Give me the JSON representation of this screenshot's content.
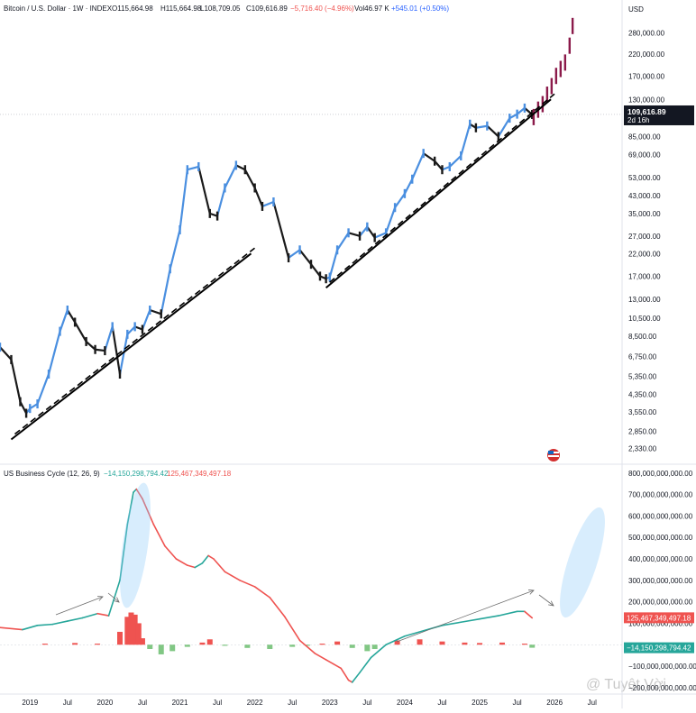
{
  "header": {
    "symbol": "Bitcoin / U.S. Dollar · 1W · INDEX",
    "open": "O115,664.98",
    "high": "H115,664.98",
    "low": "L108,709.05",
    "close": "C109,616.89",
    "change": "−5,716.40 (−4.96%)",
    "volume": "Vol46.97 K",
    "bid_change": "+545.01 (+0.50%)"
  },
  "price_pane": {
    "currency": "USD",
    "last_price": "109,616.89",
    "countdown": "2d 16h",
    "colors": {
      "up": "#4a8fe0",
      "down": "#1a1a1a",
      "projection": "#8b1a4a",
      "trend": "#000000"
    }
  },
  "indicator": {
    "title": "US Business Cycle (12, 26, 9)",
    "value1": "−14,150,298,794.42",
    "value2": "125,467,349,497.18",
    "colors": {
      "rising": "#26a69a",
      "falling": "#ef5350",
      "hist_pos": "#ef5350",
      "hist_neg": "#81c784"
    }
  },
  "watermark": "@ Tuyệt Vời",
  "chart_data": [
    {
      "type": "line",
      "title": "Bitcoin / U.S. Dollar · 1W · INDEX",
      "scale": "log",
      "y_ticks": [
        "280,000.00",
        "220,000.00",
        "170,000.00",
        "130,000.00",
        "85,000.00",
        "69,000.00",
        "53,000.00",
        "43,000.00",
        "35,000.00",
        "27,000.00",
        "22,000.00",
        "17,000.00",
        "13,000.00",
        "10,500.00",
        "8,500.00",
        "6,750.00",
        "5,350.00",
        "4,350.00",
        "3,550.00",
        "2,850.00",
        "2,330.00"
      ],
      "y_tick_values": [
        280000,
        220000,
        170000,
        130000,
        85000,
        69000,
        53000,
        43000,
        35000,
        27000,
        22000,
        17000,
        13000,
        10500,
        8500,
        6750,
        5350,
        4350,
        3550,
        2850,
        2330
      ],
      "ylim": [
        2050,
        340000
      ],
      "x_ticks": [
        "2019",
        "Jul",
        "2020",
        "Jul",
        "2021",
        "Jul",
        "2022",
        "Jul",
        "2023",
        "Jul",
        "2024",
        "Jul",
        "2025",
        "Jul",
        "2026",
        "Jul"
      ],
      "x_tick_values": [
        2019.0,
        2019.5,
        2020.0,
        2020.5,
        2021.0,
        2021.5,
        2022.0,
        2022.5,
        2023.0,
        2023.5,
        2024.0,
        2024.5,
        2025.0,
        2025.5,
        2026.0,
        2026.5
      ],
      "xlim": [
        2018.6,
        2026.9
      ],
      "series": [
        {
          "x": [
            2018.6,
            2018.75,
            2018.87,
            2018.95,
            2019.0,
            2019.1,
            2019.25,
            2019.4,
            2019.5,
            2019.6,
            2019.75,
            2019.87,
            2020.0,
            2020.1,
            2020.2,
            2020.3,
            2020.4,
            2020.5,
            2020.6,
            2020.75,
            2020.87,
            2021.0,
            2021.1,
            2021.25,
            2021.4,
            2021.5,
            2021.6,
            2021.75,
            2021.87,
            2022.0,
            2022.1,
            2022.25,
            2022.45,
            2022.6,
            2022.75,
            2022.87,
            2022.95,
            2023.0,
            2023.1,
            2023.25,
            2023.4,
            2023.5,
            2023.6,
            2023.75,
            2023.87,
            2024.0,
            2024.1,
            2024.25,
            2024.4,
            2024.5,
            2024.6,
            2024.75,
            2024.87,
            2024.95,
            2025.1,
            2025.25,
            2025.4,
            2025.5,
            2025.6,
            2025.7
          ],
          "values": [
            7500,
            6500,
            4000,
            3500,
            3700,
            3900,
            5500,
            9000,
            11500,
            10000,
            8000,
            7300,
            7200,
            9500,
            5500,
            8700,
            9500,
            9200,
            11500,
            11000,
            18500,
            29000,
            58000,
            60000,
            35000,
            34000,
            47000,
            61000,
            58000,
            47000,
            38000,
            40000,
            21000,
            23000,
            19500,
            17000,
            16500,
            16800,
            23000,
            28000,
            27000,
            30000,
            26500,
            28000,
            37500,
            44000,
            52000,
            70000,
            64000,
            58000,
            60000,
            68000,
            98000,
            94000,
            96000,
            85000,
            105000,
            110000,
            118000,
            109600
          ]
        }
      ],
      "projection": {
        "x": [
          2025.72,
          2025.78,
          2025.84,
          2025.9,
          2025.96,
          2026.02,
          2026.08,
          2026.14,
          2026.2,
          2026.24
        ],
        "values": [
          112000,
          122000,
          130000,
          145000,
          160000,
          180000,
          195000,
          210000,
          255000,
          320000
        ]
      },
      "trendlines": [
        {
          "x": [
            2018.75,
            2021.95
          ],
          "values": [
            2700,
            23000
          ]
        },
        {
          "x": [
            2022.95,
            2025.95
          ],
          "values": [
            15500,
            136000
          ]
        }
      ]
    },
    {
      "type": "line",
      "title": "US Business Cycle (12, 26, 9)",
      "y_ticks": [
        "800,000,000,000.00",
        "700,000,000,000.00",
        "600,000,000,000.00",
        "500,000,000,000.00",
        "400,000,000,000.00",
        "300,000,000,000.00",
        "200,000,000,000.00",
        "100,000,000,000.00",
        "−100,000,000,000.00",
        "−200,000,000,000.00"
      ],
      "y_tick_values": [
        800000000000.0,
        700000000000.0,
        600000000000.0,
        500000000000.0,
        400000000000.0,
        300000000000.0,
        200000000000.0,
        100000000000.0,
        -100000000000.0,
        -200000000000.0
      ],
      "ylim": [
        -230000000000.0,
        820000000000.0
      ],
      "series": [
        {
          "x": [
            2018.6,
            2018.9,
            2019.1,
            2019.3,
            2019.5,
            2019.7,
            2019.9,
            2020.05,
            2020.2,
            2020.3,
            2020.38,
            2020.42,
            2020.5,
            2020.65,
            2020.8,
            2020.95,
            2021.1,
            2021.2,
            2021.3,
            2021.38,
            2021.45,
            2021.6,
            2021.8,
            2022.0,
            2022.2,
            2022.4,
            2022.6,
            2022.8,
            2022.95,
            2023.05,
            2023.15,
            2023.25,
            2023.3,
            2023.4,
            2023.55,
            2023.75,
            2024.0,
            2024.25,
            2024.5,
            2024.75,
            2025.0,
            2025.25,
            2025.5,
            2025.6,
            2025.7
          ],
          "values": [
            80000000000.0,
            70000000000.0,
            90000000000.0,
            95000000000.0,
            110000000000.0,
            125000000000.0,
            145000000000.0,
            135000000000.0,
            300000000000.0,
            560000000000.0,
            710000000000.0,
            725000000000.0,
            680000000000.0,
            560000000000.0,
            460000000000.0,
            400000000000.0,
            370000000000.0,
            360000000000.0,
            380000000000.0,
            415000000000.0,
            400000000000.0,
            340000000000.0,
            300000000000.0,
            270000000000.0,
            220000000000.0,
            130000000000.0,
            20000000000.0,
            -40000000000.0,
            -70000000000.0,
            -90000000000.0,
            -110000000000.0,
            -165000000000.0,
            -175000000000.0,
            -130000000000.0,
            -60000000000.0,
            0.0,
            40000000000.0,
            65000000000.0,
            90000000000.0,
            105000000000.0,
            120000000000.0,
            135000000000.0,
            155000000000.0,
            155000000000.0,
            125000000000.0
          ]
        }
      ],
      "histogram": {
        "x": [
          2019.2,
          2019.6,
          2019.9,
          2020.2,
          2020.3,
          2020.35,
          2020.4,
          2020.45,
          2020.5,
          2020.6,
          2020.75,
          2020.9,
          2021.1,
          2021.3,
          2021.4,
          2021.6,
          2021.9,
          2022.2,
          2022.5,
          2022.7,
          2022.9,
          2023.1,
          2023.3,
          2023.5,
          2023.6,
          2023.9,
          2024.2,
          2024.5,
          2024.8,
          2025.0,
          2025.3,
          2025.6,
          2025.7
        ],
        "values": [
          5000000000.0,
          8000000000.0,
          5000000000.0,
          60000000000.0,
          130000000000.0,
          150000000000.0,
          140000000000.0,
          100000000000.0,
          30000000000.0,
          -20000000000.0,
          -45000000000.0,
          -30000000000.0,
          -10000000000.0,
          10000000000.0,
          25000000000.0,
          -5000000000.0,
          -15000000000.0,
          -20000000000.0,
          -10000000000.0,
          -5000000000.0,
          5000000000.0,
          15000000000.0,
          -15000000000.0,
          -30000000000.0,
          -20000000000.0,
          20000000000.0,
          25000000000.0,
          15000000000.0,
          10000000000.0,
          8000000000.0,
          10000000000.0,
          5000000000.0,
          -14000000000.0
        ]
      },
      "annotations": [
        "arrows",
        "highlight-ellipses"
      ]
    }
  ]
}
